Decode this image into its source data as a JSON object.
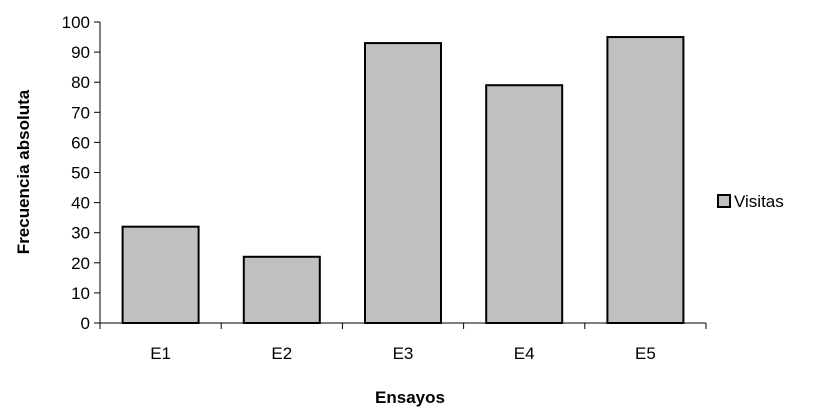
{
  "chart_data": {
    "type": "bar",
    "title": "",
    "xlabel": "Ensayos",
    "ylabel": "Frecuencia absoluta",
    "categories": [
      "E1",
      "E2",
      "E3",
      "E4",
      "E5"
    ],
    "series": [
      {
        "name": "Visitas",
        "values": [
          32,
          22,
          93,
          79,
          95
        ]
      }
    ],
    "ylim": [
      0,
      100
    ],
    "yticks": [
      0,
      10,
      20,
      30,
      40,
      50,
      60,
      70,
      80,
      90,
      100
    ],
    "grid": false,
    "legend": "right",
    "colors": {
      "bar_fill": "#c0c0c0",
      "bar_stroke": "#000000",
      "axis": "#000000"
    }
  }
}
